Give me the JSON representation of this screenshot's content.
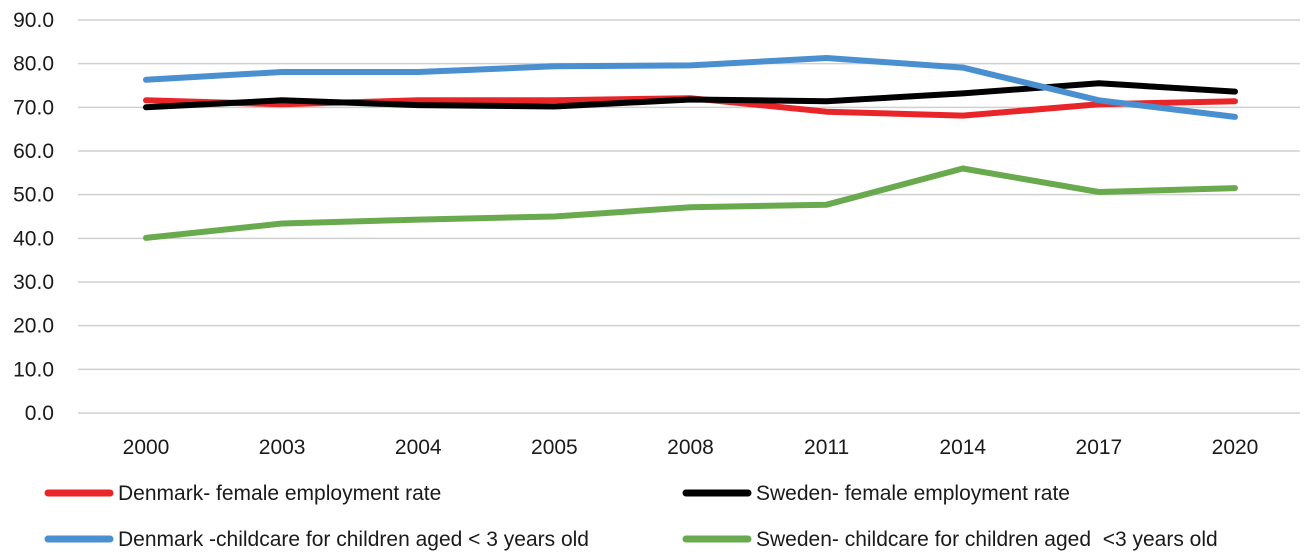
{
  "chart_data": {
    "type": "line",
    "title": "",
    "xlabel": "",
    "ylabel": "",
    "categories": [
      "2000",
      "2003",
      "2004",
      "2005",
      "2008",
      "2011",
      "2014",
      "2017",
      "2020"
    ],
    "ylim": [
      0,
      90
    ],
    "yticks": [
      "0.0",
      "10.0",
      "20.0",
      "30.0",
      "40.0",
      "50.0",
      "60.0",
      "70.0",
      "80.0",
      "90.0"
    ],
    "grid": true,
    "legend_position": "bottom",
    "series": [
      {
        "name": "Denmark- female employment rate",
        "color": "#e8262a",
        "values": [
          71.6,
          70.7,
          71.6,
          71.6,
          72.1,
          69.0,
          68.1,
          70.7,
          71.4
        ]
      },
      {
        "name": "Sweden- female employment rate",
        "color": "#000000",
        "values": [
          70.0,
          71.6,
          70.5,
          70.2,
          71.8,
          71.4,
          73.2,
          75.5,
          73.6
        ]
      },
      {
        "name": "Denmark -childcare for children aged < 3 years old",
        "color": "#4a8fd0",
        "values": [
          76.3,
          78.1,
          78.1,
          79.4,
          79.6,
          81.3,
          79.1,
          71.6,
          67.8
        ]
      },
      {
        "name": "Sweden- childcare for children aged  <3 years old",
        "color": "#6aaa4f",
        "values": [
          40.1,
          43.4,
          44.3,
          45.0,
          47.1,
          47.7,
          56.0,
          50.6,
          51.5
        ]
      }
    ]
  }
}
